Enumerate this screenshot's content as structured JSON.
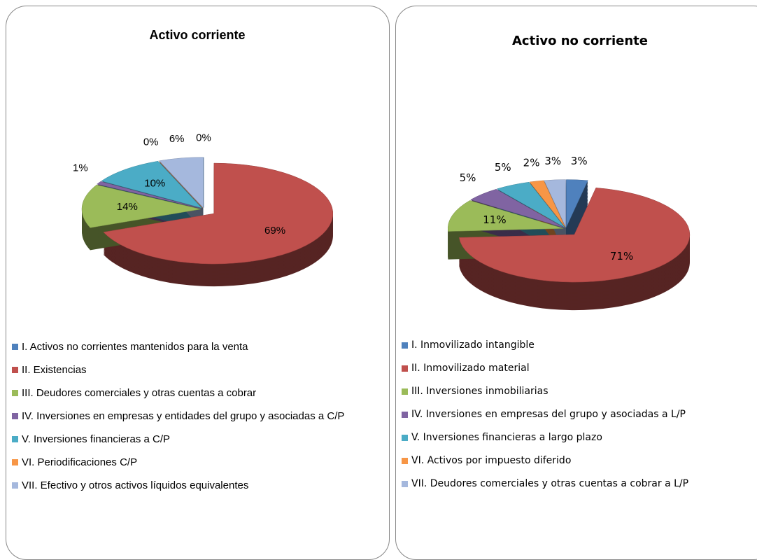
{
  "chart_data": [
    {
      "type": "pie",
      "title": "Activo corriente",
      "categories": [
        "I. Activos no corrientes mantenidos para la venta",
        "II.  Existencias",
        "III.  Deudores comerciales y otras cuentas a cobrar",
        "IV. Inversiones en empresas y entidades del grupo y asociadas a C/P",
        "V. Inversiones financieras a C/P",
        "VI. Periodificaciones C/P",
        "VII. Efectivo y otros activos líquidos equivalentes"
      ],
      "values": [
        0,
        69,
        14,
        1,
        10,
        0,
        6
      ],
      "value_labels": [
        "0%",
        "69%",
        "14%",
        "1%",
        "10%",
        "0%",
        "6%"
      ],
      "colors": [
        "#4f81bd",
        "#c0504d",
        "#9bbb59",
        "#8064a2",
        "#4bacc6",
        "#f79646",
        "#a5b8dd"
      ]
    },
    {
      "type": "pie",
      "title": "Activo no corriente",
      "categories": [
        "I. Inmovilizado intangible",
        "II. Inmovilizado material",
        "III. Inversiones inmobiliarias",
        "IV.  Inversiones en empresas del grupo y asociadas a L/P",
        "V. Inversiones financieras a largo plazo",
        "VI. Activos por impuesto diferido",
        "VII. Deudores comerciales y otras cuentas a cobrar a L/P"
      ],
      "values": [
        3,
        71,
        11,
        5,
        5,
        2,
        3
      ],
      "value_labels": [
        "3%",
        "71%",
        "11%",
        "5%",
        "5%",
        "2%",
        "3%"
      ],
      "colors": [
        "#4f81bd",
        "#c0504d",
        "#9bbb59",
        "#8064a2",
        "#4bacc6",
        "#f79646",
        "#a5b8dd"
      ]
    }
  ]
}
